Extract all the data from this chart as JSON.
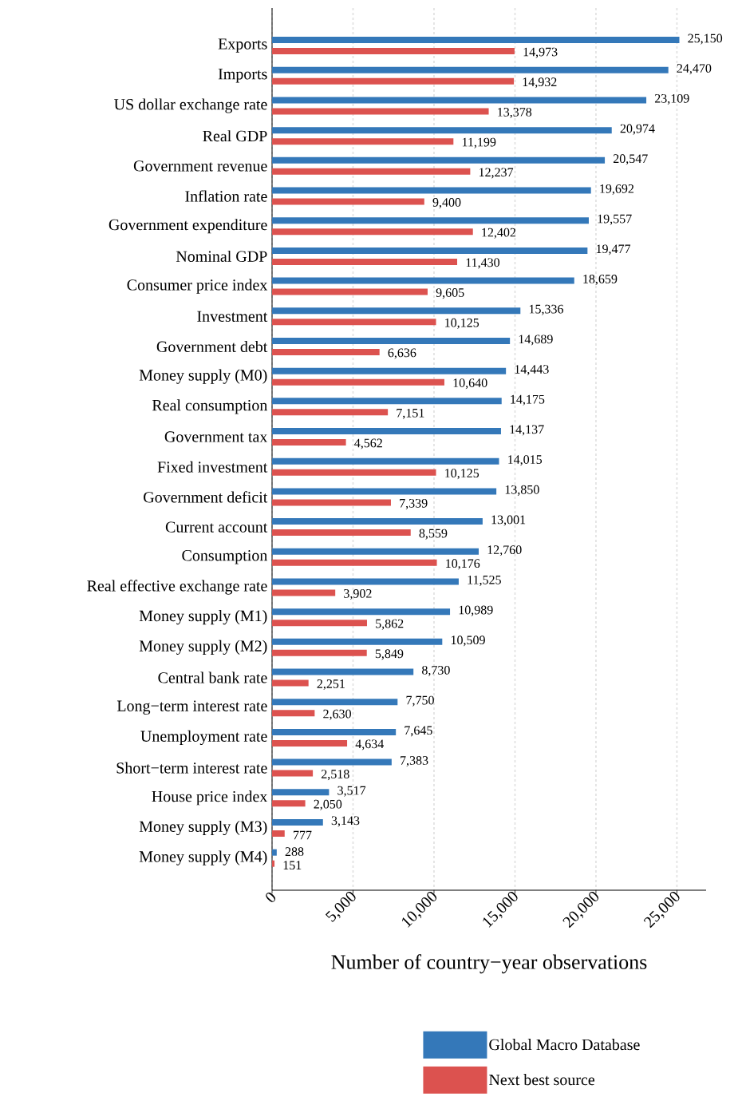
{
  "chart_data": {
    "type": "bar",
    "orientation": "horizontal",
    "xlabel": "Number of country−year observations",
    "categories": [
      "Exports",
      "Imports",
      "US dollar exchange rate",
      "Real GDP",
      "Government revenue",
      "Inflation rate",
      "Government expenditure",
      "Nominal GDP",
      "Consumer price index",
      "Investment",
      "Government debt",
      "Money supply (M0)",
      "Real consumption",
      "Government tax",
      "Fixed investment",
      "Government deficit",
      "Current account",
      "Consumption",
      "Real effective exchange rate",
      "Money supply (M1)",
      "Money supply (M2)",
      "Central bank rate",
      "Long−term interest rate",
      "Unemployment rate",
      "Short−term interest rate",
      "House price index",
      "Money supply (M3)",
      "Money supply (M4)"
    ],
    "series": [
      {
        "name": "Global Macro Database",
        "color": "#3478b9",
        "values": [
          25150,
          24470,
          23109,
          20974,
          20547,
          19692,
          19557,
          19477,
          18659,
          15336,
          14689,
          14443,
          14175,
          14137,
          14015,
          13850,
          13001,
          12760,
          11525,
          10989,
          10509,
          8730,
          7750,
          7645,
          7383,
          3517,
          3143,
          288
        ],
        "value_labels": [
          "25,150",
          "24,470",
          "23,109",
          "20,974",
          "20,547",
          "19,692",
          "19,557",
          "19,477",
          "18,659",
          "15,336",
          "14,689",
          "14,443",
          "14,175",
          "14,137",
          "14,015",
          "13,850",
          "13,001",
          "12,760",
          "11,525",
          "10,989",
          "10,509",
          "8,730",
          "7,750",
          "7,645",
          "7,383",
          "3,517",
          "3,143",
          "288"
        ]
      },
      {
        "name": "Next best source",
        "color": "#dc524f",
        "values": [
          14973,
          14932,
          13378,
          11199,
          12237,
          9400,
          12402,
          11430,
          9605,
          10125,
          6636,
          10640,
          7151,
          4562,
          10125,
          7339,
          8559,
          10176,
          3902,
          5862,
          5849,
          2251,
          2630,
          4634,
          2518,
          2050,
          777,
          151
        ],
        "value_labels": [
          "14,973",
          "14,932",
          "13,378",
          "11,199",
          "12,237",
          "9,400",
          "12,402",
          "11,430",
          "9,605",
          "10,125",
          "6,636",
          "10,640",
          "7,151",
          "4,562",
          "10,125",
          "7,339",
          "8,559",
          "10,176",
          "3,902",
          "5,862",
          "5,849",
          "2,251",
          "2,630",
          "4,634",
          "2,518",
          "2,050",
          "777",
          "151"
        ]
      }
    ],
    "xlim": [
      0,
      26800
    ],
    "xticks": [
      0,
      {
        "value": 5000,
        "label": "5,000"
      },
      {
        "value": 10000,
        "label": "10,000"
      },
      {
        "value": 15000,
        "label": "15,000"
      },
      {
        "value": 20000,
        "label": "20,000"
      },
      {
        "value": 25000,
        "label": "25,000"
      }
    ],
    "grid": "x",
    "legend": "bottom"
  }
}
